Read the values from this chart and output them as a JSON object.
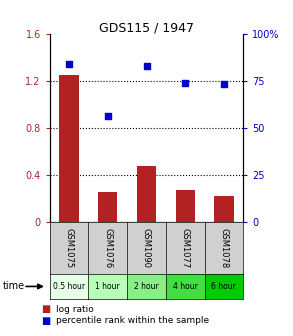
{
  "title": "GDS115 / 1947",
  "categories": [
    "GSM1075",
    "GSM1076",
    "GSM1090",
    "GSM1077",
    "GSM1078"
  ],
  "time_labels": [
    "0.5 hour",
    "1 hour",
    "2 hour",
    "4 hour",
    "6 hour"
  ],
  "log_ratio": [
    1.25,
    0.25,
    0.47,
    0.27,
    0.22
  ],
  "percentile_rank": [
    84,
    56,
    83,
    74,
    73
  ],
  "bar_color": "#b22222",
  "dot_color": "#0000cc",
  "ylim_left": [
    0,
    1.6
  ],
  "ylim_right": [
    0,
    100
  ],
  "yticks_left": [
    0,
    0.4,
    0.8,
    1.2,
    1.6
  ],
  "ytick_labels_left": [
    "0",
    "0.4",
    "0.8",
    "1.2",
    "1.6"
  ],
  "yticks_right": [
    0,
    25,
    50,
    75,
    100
  ],
  "ytick_labels_right": [
    "0",
    "25",
    "50",
    "75",
    "100%"
  ],
  "time_colors": [
    "#e8ffe8",
    "#b8ffb8",
    "#88ee88",
    "#44dd44",
    "#00cc00"
  ],
  "bar_width": 0.5,
  "legend_log_label": "log ratio",
  "legend_pct_label": "percentile rank within the sample",
  "time_label": "time",
  "bg_color": "#ffffff",
  "plot_bg": "#ffffff",
  "grey_cell": "#d0d0d0"
}
